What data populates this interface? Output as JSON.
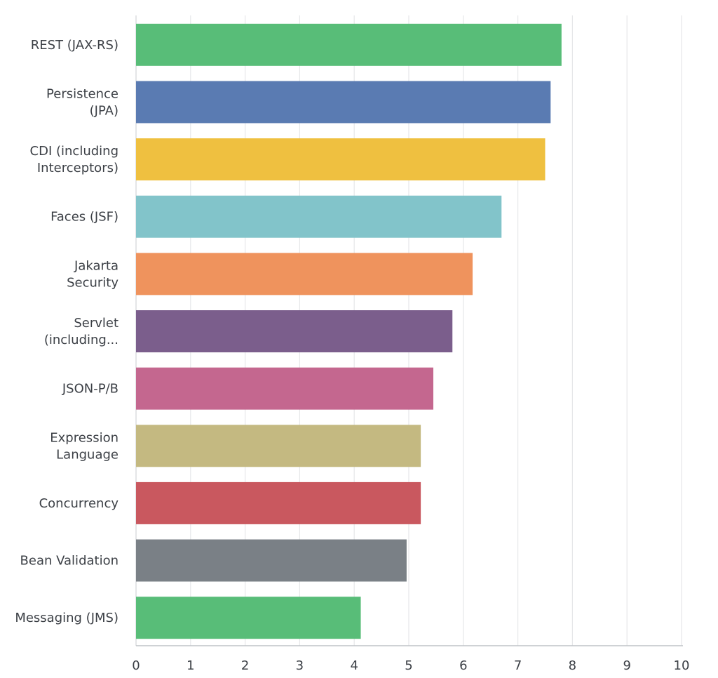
{
  "chart_data": {
    "type": "bar",
    "orientation": "horizontal",
    "title": "",
    "xlabel": "",
    "ylabel": "",
    "xlim": [
      0,
      10
    ],
    "grid": true,
    "categories": [
      [
        "REST (JAX-RS)"
      ],
      [
        "Persistence",
        "(JPA)"
      ],
      [
        "CDI (including",
        "Interceptors)"
      ],
      [
        "Faces (JSF)"
      ],
      [
        "Jakarta",
        "Security"
      ],
      [
        "Servlet",
        "(including..."
      ],
      [
        "JSON-P/B"
      ],
      [
        "Expression",
        "Language"
      ],
      [
        "Concurrency"
      ],
      [
        "Bean Validation"
      ],
      [
        "Messaging (JMS)"
      ]
    ],
    "values": [
      7.8,
      7.6,
      7.5,
      6.7,
      6.17,
      5.8,
      5.45,
      5.22,
      5.22,
      4.96,
      4.12
    ],
    "colors": [
      "#58bd78",
      "#5a7bb2",
      "#efc040",
      "#82c4ca",
      "#ef935d",
      "#7b5e8c",
      "#c4678f",
      "#c4b981",
      "#c9585f",
      "#7a8086",
      "#58bd78"
    ],
    "ticks": [
      "0",
      "1",
      "2",
      "3",
      "4",
      "5",
      "6",
      "7",
      "8",
      "9",
      "10"
    ]
  }
}
